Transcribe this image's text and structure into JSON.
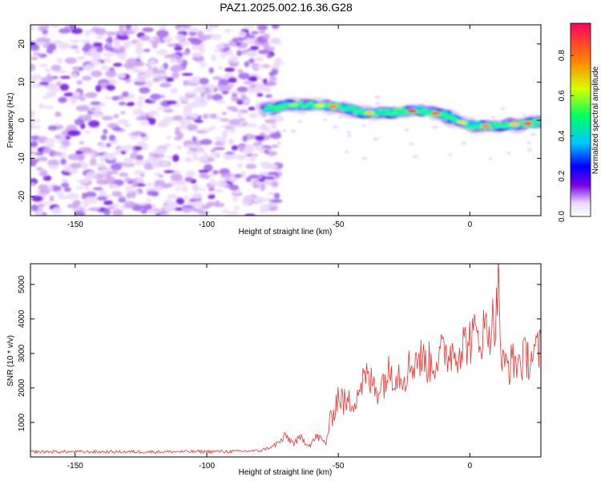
{
  "title": "PAZ1.2025.002.16.36.G28",
  "chart_data": [
    {
      "type": "heatmap",
      "xlabel": "Height of straight line (km)",
      "ylabel": "Frequency (Hz)",
      "xlim": [
        -167,
        27
      ],
      "ylim": [
        -25,
        25
      ],
      "xticks": [
        -150,
        -100,
        -50,
        0
      ],
      "yticks": [
        -20,
        -10,
        0,
        10,
        20
      ],
      "colorbar": {
        "label": "Normalized spectral amplitude",
        "range": [
          0,
          0.96
        ],
        "ticks": [
          "0.0",
          "0.2",
          "0.4",
          "0.6",
          "0.8"
        ],
        "colormap": "rainbow",
        "colors": [
          "#ffffff",
          "#7a00e6",
          "#0000ff",
          "#00c8ff",
          "#00ff60",
          "#d8ff00",
          "#ff8800",
          "#ff0040"
        ]
      },
      "signal_trace": {
        "x": [
          -77,
          -70,
          -60,
          -50,
          -40,
          -30,
          -20,
          -10,
          0,
          10,
          20,
          27
        ],
        "y": [
          3,
          4,
          4,
          3.5,
          2,
          2,
          2.5,
          1.5,
          -1.5,
          -1.5,
          -1,
          -0.5
        ]
      },
      "noise_region_x": [
        -167,
        -77
      ]
    },
    {
      "type": "line",
      "xlabel": "Height of straight line (km)",
      "ylabel": "SNR (10 * v/v)",
      "xlim": [
        -167,
        27
      ],
      "ylim": [
        0,
        5600
      ],
      "xticks": [
        -150,
        -100,
        -50,
        0
      ],
      "yticks": [
        1000,
        2000,
        3000,
        4000,
        5000
      ],
      "series": [
        {
          "color": "#ee3333",
          "x": [
            -167,
            -150,
            -120,
            -90,
            -80,
            -75,
            -72,
            -70,
            -67,
            -64,
            -61,
            -58,
            -55,
            -52,
            -50,
            -47,
            -44,
            -40,
            -35,
            -30,
            -25,
            -20,
            -15,
            -10,
            -5,
            0,
            5,
            8,
            10,
            11,
            12,
            15,
            20,
            27
          ],
          "y": [
            150,
            150,
            150,
            160,
            180,
            300,
            450,
            600,
            400,
            550,
            350,
            600,
            400,
            1300,
            1800,
            1500,
            1700,
            2300,
            2000,
            2500,
            2400,
            2900,
            2700,
            3000,
            3100,
            3400,
            3600,
            3800,
            4100,
            5300,
            2600,
            2700,
            2800,
            3100
          ]
        }
      ]
    }
  ]
}
